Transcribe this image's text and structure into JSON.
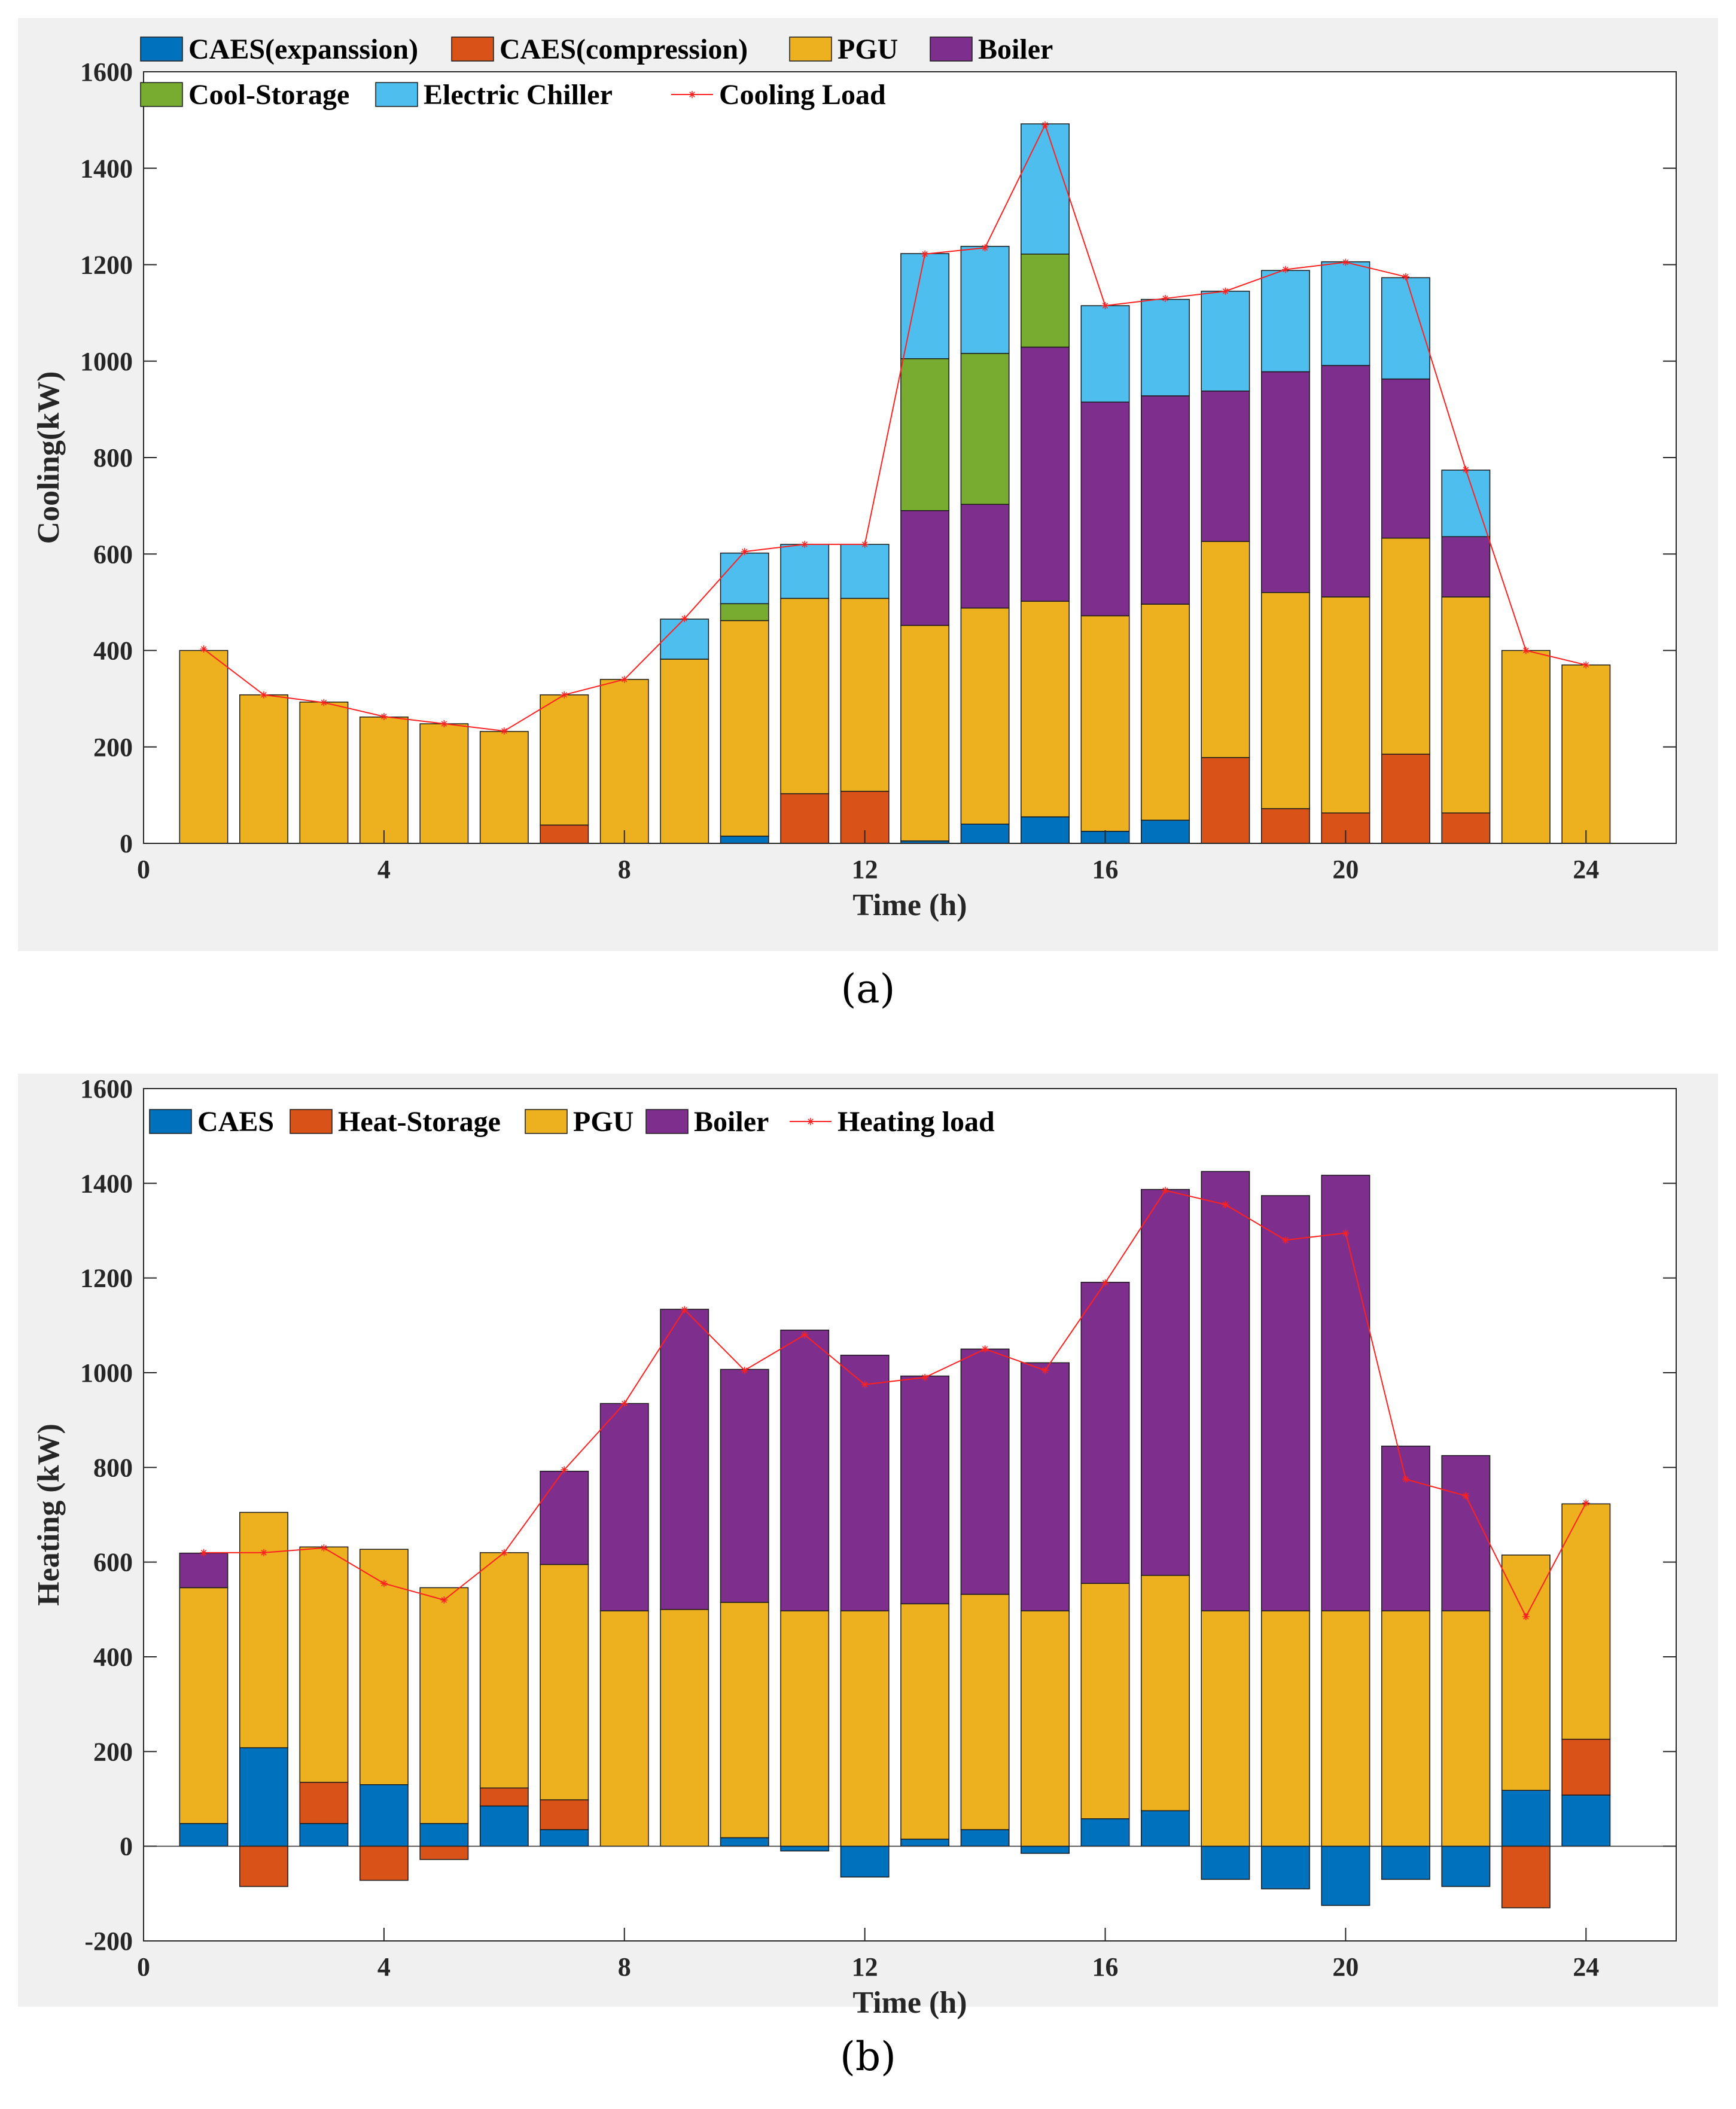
{
  "captions": {
    "a": "(a)",
    "b": "(b)"
  },
  "chart_data": [
    {
      "id": "a",
      "type": "bar",
      "stacked": true,
      "title": "",
      "xlabel": "Time (h)",
      "ylabel": "Cooling(kW)",
      "xlim": [
        0,
        25.5
      ],
      "ylim": [
        0,
        1600
      ],
      "xticks": [
        0,
        4,
        8,
        12,
        16,
        20,
        24
      ],
      "yticks": [
        0,
        200,
        400,
        600,
        800,
        1000,
        1200,
        1400,
        1600
      ],
      "x": [
        1,
        2,
        3,
        4,
        5,
        6,
        7,
        8,
        9,
        10,
        11,
        12,
        13,
        14,
        15,
        16,
        17,
        18,
        19,
        20,
        21,
        22,
        23,
        24
      ],
      "series": [
        {
          "name": "CAES(expanssion)",
          "color": "#0072bd",
          "values": [
            0,
            0,
            0,
            0,
            0,
            0,
            0,
            0,
            0,
            15,
            0,
            0,
            5,
            40,
            55,
            25,
            48,
            0,
            0,
            0,
            0,
            0,
            0,
            0
          ]
        },
        {
          "name": "CAES(compression)",
          "color": "#d95319",
          "values": [
            0,
            0,
            0,
            0,
            0,
            0,
            38,
            0,
            0,
            0,
            103,
            108,
            0,
            0,
            0,
            0,
            0,
            178,
            72,
            63,
            185,
            63,
            0,
            0
          ]
        },
        {
          "name": "PGU",
          "color": "#edb120",
          "values": [
            400,
            308,
            293,
            262,
            248,
            232,
            270,
            340,
            382,
            447,
            405,
            400,
            447,
            448,
            447,
            447,
            448,
            448,
            448,
            448,
            448,
            448,
            400,
            370
          ]
        },
        {
          "name": "Boiler",
          "color": "#7e2f8e",
          "values": [
            0,
            0,
            0,
            0,
            0,
            0,
            0,
            0,
            0,
            0,
            0,
            0,
            238,
            215,
            527,
            443,
            432,
            312,
            458,
            480,
            330,
            125,
            0,
            0
          ]
        },
        {
          "name": "Cool-Storage",
          "color": "#77ac30",
          "values": [
            0,
            0,
            0,
            0,
            0,
            0,
            0,
            0,
            0,
            35,
            0,
            0,
            315,
            313,
            193,
            0,
            0,
            0,
            0,
            0,
            0,
            0,
            0,
            0
          ]
        },
        {
          "name": "Electric Chiller",
          "color": "#4dbeee",
          "values": [
            0,
            0,
            0,
            0,
            0,
            0,
            0,
            0,
            83,
            105,
            112,
            112,
            218,
            222,
            270,
            200,
            200,
            207,
            210,
            215,
            210,
            138,
            0,
            0
          ]
        }
      ],
      "line": {
        "name": "Cooling Load",
        "color": "#ff2020",
        "values": [
          403,
          308,
          292,
          263,
          248,
          233,
          308,
          340,
          466,
          605,
          620,
          620,
          1222,
          1235,
          1490,
          1115,
          1130,
          1145,
          1190,
          1205,
          1175,
          775,
          400,
          370
        ]
      }
    },
    {
      "id": "b",
      "type": "bar",
      "stacked": true,
      "title": "",
      "xlabel": "Time (h)",
      "ylabel": "Heating (kW)",
      "xlim": [
        0,
        25.5
      ],
      "ylim": [
        -200,
        1600
      ],
      "xticks": [
        0,
        4,
        8,
        12,
        16,
        20,
        24
      ],
      "yticks": [
        -200,
        0,
        200,
        400,
        600,
        800,
        1000,
        1200,
        1400,
        1600
      ],
      "x": [
        1,
        2,
        3,
        4,
        5,
        6,
        7,
        8,
        9,
        10,
        11,
        12,
        13,
        14,
        15,
        16,
        17,
        18,
        19,
        20,
        21,
        22,
        23,
        24
      ],
      "series": [
        {
          "name": "CAES",
          "color": "#0072bd",
          "values": [
            48,
            208,
            48,
            130,
            48,
            85,
            35,
            0,
            0,
            18,
            -10,
            -65,
            15,
            35,
            -15,
            58,
            75,
            -70,
            -90,
            -125,
            -70,
            -85,
            118,
            108
          ]
        },
        {
          "name": "Heat-Storage",
          "color": "#d95319",
          "values": [
            0,
            -85,
            87,
            -72,
            -28,
            38,
            63,
            0,
            0,
            0,
            0,
            0,
            0,
            0,
            0,
            0,
            0,
            0,
            0,
            0,
            0,
            0,
            -130,
            118
          ]
        },
        {
          "name": "PGU",
          "color": "#edb120",
          "values": [
            498,
            497,
            497,
            497,
            498,
            497,
            497,
            497,
            500,
            497,
            497,
            497,
            497,
            497,
            497,
            497,
            497,
            497,
            497,
            497,
            497,
            497,
            497,
            497
          ]
        },
        {
          "name": "Boiler",
          "color": "#7e2f8e",
          "values": [
            73,
            0,
            0,
            0,
            0,
            0,
            197,
            438,
            634,
            492,
            593,
            540,
            481,
            518,
            524,
            636,
            815,
            928,
            877,
            920,
            348,
            328,
            0,
            0
          ]
        }
      ],
      "line": {
        "name": "Heating load",
        "color": "#ff2020",
        "values": [
          620,
          620,
          630,
          555,
          520,
          620,
          795,
          935,
          1133,
          1005,
          1080,
          975,
          990,
          1050,
          1005,
          1190,
          1385,
          1355,
          1280,
          1295,
          775,
          740,
          485,
          725
        ]
      }
    }
  ]
}
